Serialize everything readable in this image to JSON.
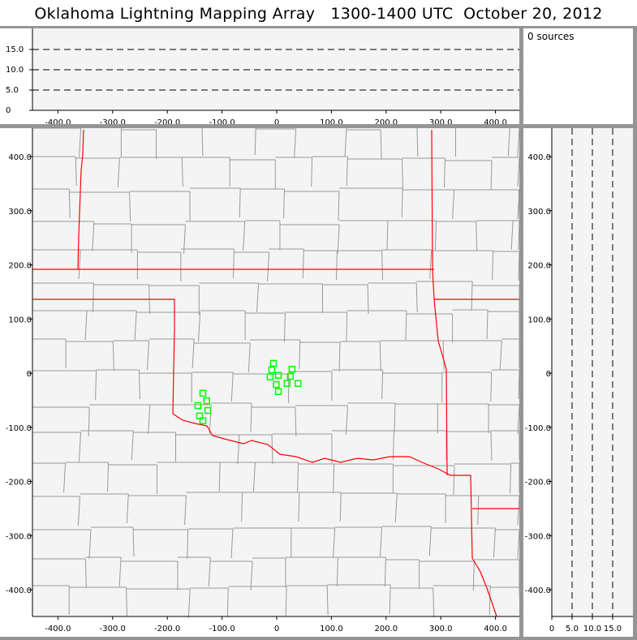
{
  "title": "Oklahoma Lightning Mapping Array   1300-1400 UTC  October 20, 2012",
  "sources_label": "0 sources",
  "chart_data": [
    {
      "type": "line",
      "panel": "altitude-vs-east-west",
      "xlim": [
        -460,
        450
      ],
      "ylim": [
        0,
        20
      ],
      "x_ticks": [
        "-400.0",
        "-300.0",
        "-200.0",
        "-100.0",
        "0",
        "100.0",
        "200.0",
        "300.0",
        "400.0"
      ],
      "x_tick_values": [
        -400,
        -300,
        -200,
        -100,
        0,
        100,
        200,
        300,
        400
      ],
      "y_ticks": [
        "0",
        "5.0",
        "10.0",
        "15.0"
      ],
      "y_tick_values": [
        0,
        5,
        10,
        15
      ],
      "dashed_reference_lines": [
        5,
        10,
        15
      ],
      "series": []
    },
    {
      "type": "scatter",
      "panel": "plan-view-map",
      "xlim": [
        -460,
        450
      ],
      "ylim": [
        -450,
        450
      ],
      "x_ticks": [
        "-400.0",
        "-300.0",
        "-200.0",
        "-100.0",
        "0",
        "100.0",
        "200.0",
        "300.0",
        "400.0"
      ],
      "x_tick_values": [
        -400,
        -300,
        -200,
        -100,
        0,
        100,
        200,
        300,
        400
      ],
      "y_ticks": [
        "400.0",
        "300.0",
        "200.0",
        "100.0",
        "0",
        "-100.0",
        "-200.0",
        "-300.0",
        "-400.0"
      ],
      "y_tick_values": [
        400,
        300,
        200,
        100,
        0,
        -100,
        -200,
        -300,
        -400
      ],
      "station_color": "#00ff00",
      "border_color": "#ff0000",
      "county_color": "#999999",
      "stations": [
        {
          "x": -6,
          "y": 18
        },
        {
          "x": -9,
          "y": 6
        },
        {
          "x": 28,
          "y": 7
        },
        {
          "x": -12,
          "y": -7
        },
        {
          "x": 3,
          "y": -4
        },
        {
          "x": 25,
          "y": -6
        },
        {
          "x": -1,
          "y": -21
        },
        {
          "x": 19,
          "y": -19
        },
        {
          "x": 39,
          "y": -19
        },
        {
          "x": 3,
          "y": -34
        },
        {
          "x": -135,
          "y": -37
        },
        {
          "x": -128,
          "y": -51
        },
        {
          "x": -144,
          "y": -60
        },
        {
          "x": -126,
          "y": -69
        },
        {
          "x": -141,
          "y": -79
        },
        {
          "x": -135,
          "y": -88
        }
      ],
      "series": []
    },
    {
      "type": "line",
      "panel": "north-south-vs-altitude",
      "xlim": [
        0,
        20
      ],
      "ylim": [
        -450,
        450
      ],
      "x_ticks": [
        "0",
        "5.0",
        "10.0",
        "15.0"
      ],
      "x_tick_values": [
        0,
        5,
        10,
        15
      ],
      "y_ticks": [
        "400.0",
        "300.0",
        "200.0",
        "100.0",
        "0",
        "-100.0",
        "-200.0",
        "-300.0",
        "-400.0"
      ],
      "y_tick_values": [
        400,
        300,
        200,
        100,
        0,
        -100,
        -200,
        -300,
        -400
      ],
      "dashed_reference_lines": [
        5,
        10,
        15
      ],
      "series": []
    }
  ]
}
